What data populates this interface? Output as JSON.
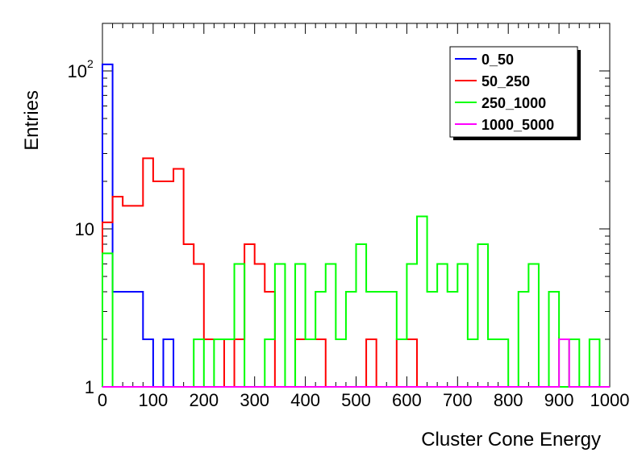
{
  "chart_data": {
    "type": "histogram",
    "xlabel": "Cluster Cone Energy",
    "ylabel": "Entries",
    "xlim": [
      0,
      1000
    ],
    "ylim": [
      1,
      200
    ],
    "log_y": true,
    "bin_width": 20,
    "x_ticks": [
      "0",
      "100",
      "200",
      "300",
      "400",
      "500",
      "600",
      "700",
      "800",
      "900",
      "1000"
    ],
    "x_tick_values": [
      0,
      100,
      200,
      300,
      400,
      500,
      600,
      700,
      800,
      900,
      1000
    ],
    "y_ticks": [
      {
        "value": 1,
        "base": "1",
        "exp": ""
      },
      {
        "value": 10,
        "base": "10",
        "exp": ""
      },
      {
        "value": 100,
        "base": "10",
        "exp": "2"
      }
    ],
    "legend_position": "top-right",
    "series": [
      {
        "name": "0_50",
        "color": "#0000ff",
        "values": [
          110,
          4,
          4,
          4,
          2,
          1,
          2,
          1,
          1,
          1,
          1,
          1,
          1,
          1,
          1,
          1,
          1,
          1,
          1,
          1,
          1,
          1,
          1,
          1,
          1,
          1,
          1,
          1,
          1,
          1,
          1,
          1,
          1,
          1,
          1,
          1,
          1,
          1,
          1,
          1,
          1,
          1,
          1,
          1,
          1,
          1,
          1,
          1,
          1,
          1
        ]
      },
      {
        "name": "50_250",
        "color": "#ff0000",
        "values": [
          11,
          16,
          14,
          14,
          28,
          20,
          20,
          24,
          8,
          6,
          2,
          2,
          1,
          2,
          8,
          6,
          4,
          1,
          1,
          2,
          2,
          2,
          1,
          1,
          1,
          1,
          2,
          1,
          1,
          2,
          2,
          1,
          1,
          1,
          1,
          1,
          1,
          1,
          1,
          1,
          1,
          1,
          1,
          1,
          1,
          1,
          1,
          1,
          1,
          1
        ]
      },
      {
        "name": "250_1000",
        "color": "#00ff00",
        "values": [
          7,
          1,
          1,
          1,
          1,
          1,
          1,
          1,
          1,
          2,
          1,
          2,
          2,
          6,
          1,
          1,
          2,
          6,
          1,
          6,
          2,
          4,
          6,
          2,
          4,
          8,
          4,
          4,
          4,
          2,
          6,
          12,
          4,
          6,
          4,
          6,
          2,
          8,
          2,
          2,
          1,
          4,
          6,
          1,
          4,
          1,
          2,
          1,
          2,
          1
        ]
      },
      {
        "name": "1000_5000",
        "color": "#ff00ff",
        "values": [
          1,
          1,
          1,
          1,
          1,
          1,
          1,
          1,
          1,
          1,
          1,
          1,
          1,
          1,
          1,
          1,
          1,
          1,
          1,
          1,
          1,
          1,
          1,
          1,
          1,
          1,
          1,
          1,
          1,
          1,
          1,
          1,
          1,
          1,
          1,
          1,
          1,
          1,
          1,
          1,
          1,
          1,
          1,
          1,
          1,
          2,
          1,
          1,
          1,
          1
        ]
      }
    ]
  }
}
